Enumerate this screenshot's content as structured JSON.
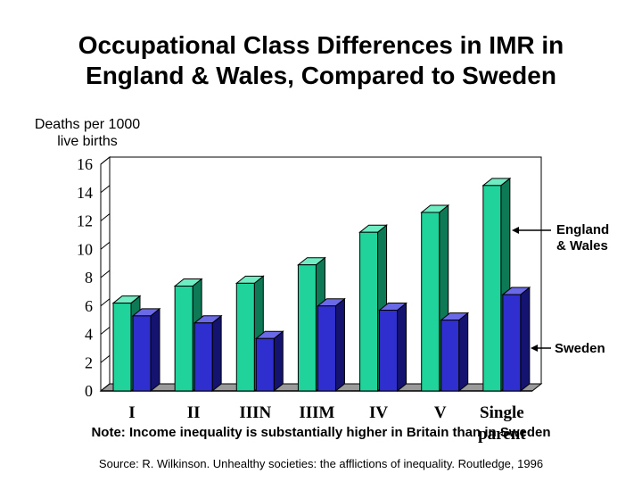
{
  "title": {
    "line1": "Occupational Class Differences in IMR in",
    "line2": "England & Wales, Compared to Sweden"
  },
  "ylabel": {
    "line1": "Deaths per 1000",
    "line2": "live births"
  },
  "note": "Note: Income inequality is substantially higher in Britain than in Sweden",
  "source": "Source: R. Wilkinson. Unhealthy societies: the afflictions of inequality. Routledge, 1996",
  "colors": {
    "england_front": "#1fd39a",
    "england_side": "#0e7a55",
    "england_top": "#70ecc3",
    "sweden_front": "#2f2fcf",
    "sweden_side": "#141470",
    "sweden_top": "#6a6ae6"
  },
  "chart_data": {
    "type": "bar",
    "categories": [
      "I",
      "II",
      "IIIN",
      "IIIM",
      "IV",
      "V",
      "Single parent"
    ],
    "series": [
      {
        "name": "England & Wales",
        "values": [
          6.2,
          7.4,
          7.6,
          8.9,
          11.2,
          12.6,
          14.5
        ]
      },
      {
        "name": "Sweden",
        "values": [
          5.3,
          4.8,
          3.7,
          6.0,
          5.7,
          5.0,
          6.8
        ]
      }
    ],
    "yticks": [
      0,
      2,
      4,
      6,
      8,
      10,
      12,
      14,
      16
    ],
    "ylim": [
      0,
      16
    ],
    "xlabel": "",
    "ylabel": "Deaths per 1000 live births",
    "legend": [
      "England & Wales",
      "Sweden"
    ],
    "legend_placement": "right, beside the bars",
    "grid": false
  }
}
